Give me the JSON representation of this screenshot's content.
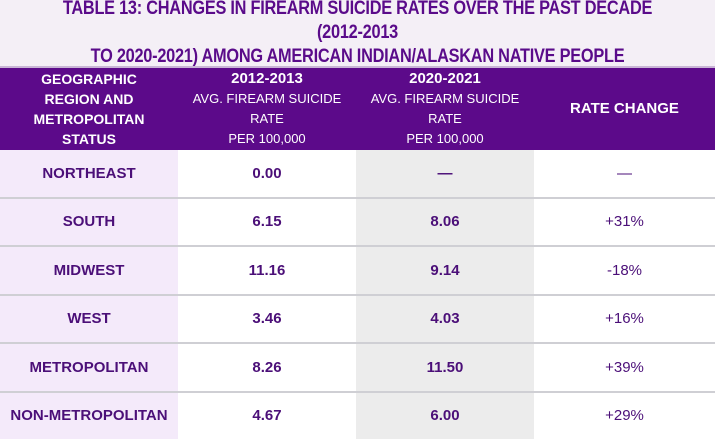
{
  "title": {
    "line1": "TABLE 13: CHANGES IN FIREARM SUICIDE RATES OVER THE PAST DECADE (2012-2013",
    "line2": "TO 2020-2021) AMONG AMERICAN INDIAN/ALASKAN NATIVE PEOPLE"
  },
  "headers": {
    "region": "GEOGRAPHIC REGION AND METROPOLITAN STATUS",
    "p1_year": "2012-2013",
    "p1_sub1": "AVG. FIREARM SUICIDE RATE",
    "p1_sub2": "PER 100,000",
    "p2_year": "2020-2021",
    "p2_sub1": "AVG. FIREARM SUICIDE RATE",
    "p2_sub2": "PER 100,000",
    "change": "RATE CHANGE"
  },
  "rows": [
    {
      "region": "NORTHEAST",
      "r1": "0.00",
      "r2": "—",
      "change": "—"
    },
    {
      "region": "SOUTH",
      "r1": "6.15",
      "r2": "8.06",
      "change": "+31%"
    },
    {
      "region": "MIDWEST",
      "r1": "11.16",
      "r2": "9.14",
      "change": "-18%"
    },
    {
      "region": "WEST",
      "r1": "3.46",
      "r2": "4.03",
      "change": "+16%"
    },
    {
      "region": "METROPOLITAN",
      "r1": "8.26",
      "r2": "11.50",
      "change": "+39%"
    },
    {
      "region": "NON-METROPOLITAN",
      "r1": "4.67",
      "r2": "6.00",
      "change": "+29%"
    }
  ]
}
